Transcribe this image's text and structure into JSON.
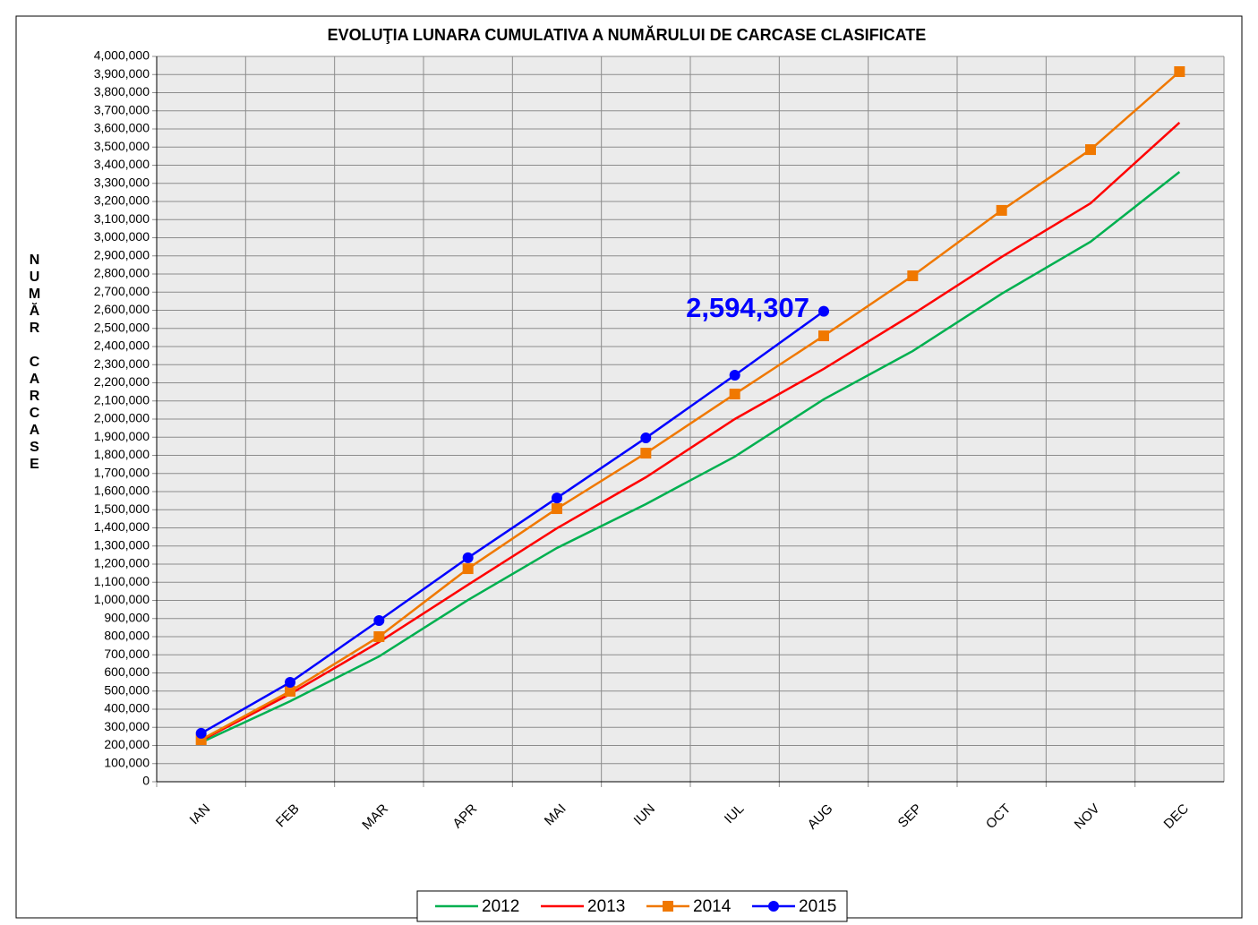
{
  "chart_data": {
    "type": "line",
    "title": "EVOLUŢIA LUNARA  CUMULATIVA A NUMĂRULUI DE CARCASE CLASIFICATE",
    "y_label": "NUMĂR CARCASE",
    "categories": [
      "IAN",
      "FEB",
      "MAR",
      "APR",
      "MAI",
      "IUN",
      "IUL",
      "AUG",
      "SEP",
      "OCT",
      "NOV",
      "DEC"
    ],
    "series": [
      {
        "name": "2012",
        "color": "#00b050",
        "marker": "none",
        "values": [
          217000,
          444000,
          691000,
          1002000,
          1289000,
          1531000,
          1793000,
          2109000,
          2375000,
          2691000,
          2978000,
          3363000
        ]
      },
      {
        "name": "2013",
        "color": "#ff0000",
        "marker": "none",
        "values": [
          227000,
          484000,
          770000,
          1086000,
          1398000,
          1679000,
          2000000,
          2277000,
          2578000,
          2894000,
          3190000,
          3635000
        ]
      },
      {
        "name": "2014",
        "color": "#f07800",
        "marker": "square",
        "values": [
          232000,
          499000,
          800000,
          1175000,
          1506000,
          1812000,
          2138000,
          2459000,
          2790000,
          3151000,
          3486000,
          3916000
        ]
      },
      {
        "name": "2015",
        "color": "#0000ff",
        "marker": "circle",
        "values": [
          267000,
          548000,
          889000,
          1235000,
          1565000,
          1896000,
          2242000,
          2594307,
          null,
          null,
          null,
          null
        ],
        "value_labels": [
          null,
          null,
          null,
          null,
          null,
          null,
          null,
          "2,594,307",
          null,
          null,
          null,
          null
        ]
      }
    ],
    "ylim": [
      0,
      4000000
    ],
    "yticks": [
      0,
      {
        "value": 100000,
        "label": "100,000"
      },
      {
        "value": 200000,
        "label": "200,000"
      },
      {
        "value": 300000,
        "label": "300,000"
      },
      {
        "value": 400000,
        "label": "400,000"
      },
      {
        "value": 500000,
        "label": "500,000"
      },
      {
        "value": 600000,
        "label": "600,000"
      },
      {
        "value": 700000,
        "label": "700,000"
      },
      {
        "value": 800000,
        "label": "800,000"
      },
      {
        "value": 900000,
        "label": "900,000"
      },
      {
        "value": 1000000,
        "label": "1,000,000"
      },
      {
        "value": 1100000,
        "label": "1,100,000"
      },
      {
        "value": 1200000,
        "label": "1,200,000"
      },
      {
        "value": 1300000,
        "label": "1,300,000"
      },
      {
        "value": 1400000,
        "label": "1,400,000"
      },
      {
        "value": 1500000,
        "label": "1,500,000"
      },
      {
        "value": 1600000,
        "label": "1,600,000"
      },
      {
        "value": 1700000,
        "label": "1,700,000"
      },
      {
        "value": 1800000,
        "label": "1,800,000"
      },
      {
        "value": 1900000,
        "label": "1,900,000"
      },
      {
        "value": 2000000,
        "label": "2,000,000"
      },
      {
        "value": 2100000,
        "label": "2,100,000"
      },
      {
        "value": 2200000,
        "label": "2,200,000"
      },
      {
        "value": 2300000,
        "label": "2,300,000"
      },
      {
        "value": 2400000,
        "label": "2,400,000"
      },
      {
        "value": 2500000,
        "label": "2,500,000"
      },
      {
        "value": 2600000,
        "label": "2,600,000"
      },
      {
        "value": 2700000,
        "label": "2,700,000"
      },
      {
        "value": 2800000,
        "label": "2,800,000"
      },
      {
        "value": 2900000,
        "label": "2,900,000"
      },
      {
        "value": 3000000,
        "label": "3,000,000"
      },
      {
        "value": 3100000,
        "label": "3,100,000"
      },
      {
        "value": 3200000,
        "label": "3,200,000"
      },
      {
        "value": 3300000,
        "label": "3,300,000"
      },
      {
        "value": 3400000,
        "label": "3,400,000"
      },
      {
        "value": 3500000,
        "label": "3,500,000"
      },
      {
        "value": 3600000,
        "label": "3,600,000"
      },
      {
        "value": 3700000,
        "label": "3,700,000"
      },
      {
        "value": 3800000,
        "label": "3,800,000"
      },
      {
        "value": 3900000,
        "label": "3,900,000"
      },
      {
        "value": 4000000,
        "label": "4,000,000"
      }
    ],
    "grid": true,
    "legend": "bottom"
  }
}
